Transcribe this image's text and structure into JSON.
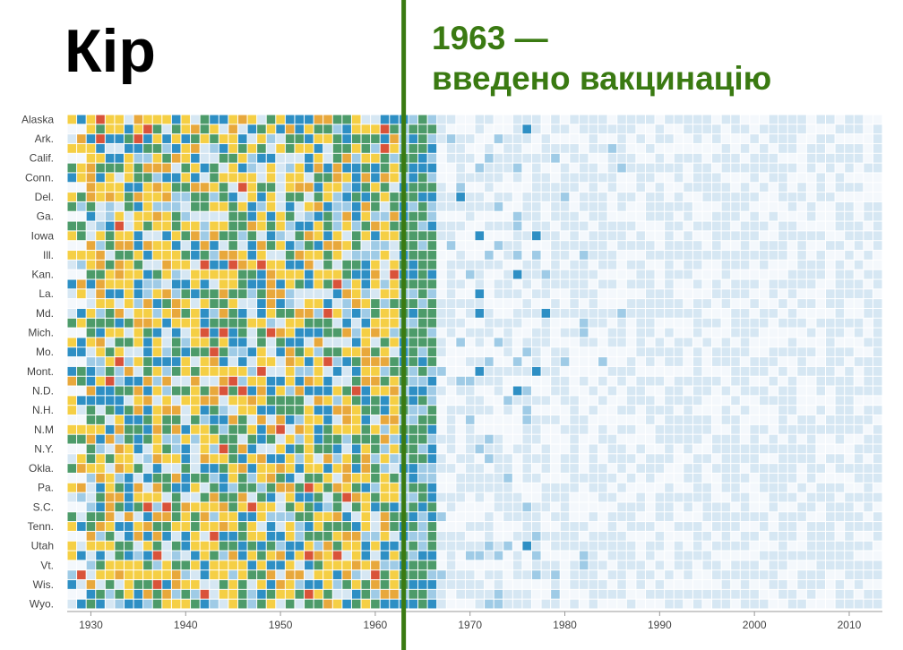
{
  "chart_data": {
    "type": "heatmap",
    "title": "Кір",
    "annotation": {
      "year": 1963,
      "line1": "1963 —",
      "line2": "введено вакцинацію",
      "color": "#3a7a12"
    },
    "x_range": [
      1928,
      2014
    ],
    "x_ticks": [
      1930,
      1940,
      1950,
      1960,
      1970,
      1980,
      1990,
      2000,
      2010
    ],
    "rows": [
      "Alaska",
      "",
      "Ark.",
      "",
      "Calif.",
      "",
      "Conn.",
      "",
      "Del.",
      "",
      "Ga.",
      "",
      "Iowa",
      "",
      "Ill.",
      "",
      "Kan.",
      "",
      "La.",
      "",
      "Md.",
      "",
      "Mich.",
      "",
      "Mo.",
      "",
      "Mont.",
      "",
      "N.D.",
      "",
      "N.H.",
      "",
      "N.M",
      "",
      "N.Y.",
      "",
      "Okla.",
      "",
      "Pa.",
      "",
      "S.C.",
      "",
      "Tenn.",
      "",
      "Utah",
      "",
      "Vt.",
      "",
      "Wis.",
      "",
      "Wyo."
    ],
    "palette": [
      "#f4f8fc",
      "#d6e7f3",
      "#9fcbe6",
      "#2e8fc4",
      "#4d9b6a",
      "#f5cf45",
      "#e8a83c",
      "#d9533a"
    ],
    "palette_meaning": "low → high incidence",
    "highlights": [
      {
        "year": 1969,
        "row": "Del.",
        "level": 3
      },
      {
        "year": 1971,
        "row": "Iowa",
        "level": 3
      },
      {
        "year": 1977,
        "row": "Iowa",
        "level": 3
      },
      {
        "year": 1976,
        "row": "",
        "level": 3
      },
      {
        "year": 1971,
        "row": "La.",
        "level": 3
      },
      {
        "year": 1975,
        "row": "Kan.",
        "level": 3
      },
      {
        "year": 1971,
        "row": "Md.",
        "level": 3
      },
      {
        "year": 1978,
        "row": "Md.",
        "level": 3
      },
      {
        "year": 1971,
        "row": "Mont.",
        "level": 3
      },
      {
        "year": 1977,
        "row": "Mont.",
        "level": 3
      },
      {
        "year": 1975,
        "row": "N.D.",
        "level": 3
      },
      {
        "year": 1976,
        "row": "Utah",
        "level": 3
      }
    ]
  }
}
